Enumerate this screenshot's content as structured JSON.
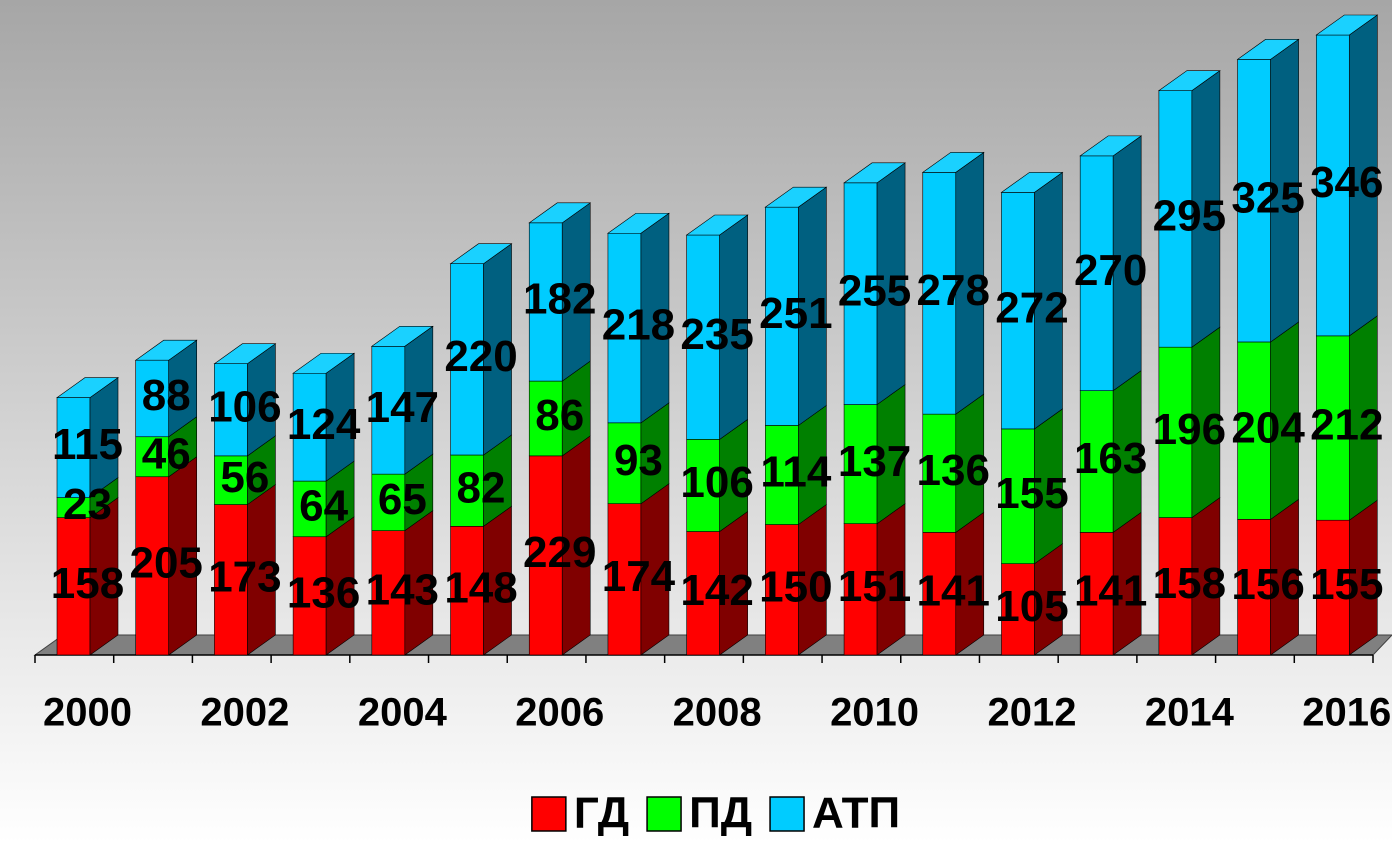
{
  "chart_data": {
    "type": "bar3d_stacked",
    "categories": [
      "2000",
      null,
      "2002",
      null,
      "2004",
      null,
      "2006",
      null,
      "2008",
      null,
      "2010",
      null,
      "2012",
      null,
      "2014",
      null,
      "2016"
    ],
    "series": [
      {
        "name": "ГД",
        "color": "#ff0000",
        "side": "#800000",
        "values": [
          158,
          205,
          173,
          136,
          143,
          148,
          229,
          174,
          142,
          150,
          151,
          141,
          105,
          141,
          158,
          156,
          155
        ]
      },
      {
        "name": "ПД",
        "color": "#00ff00",
        "side": "#008000",
        "values": [
          23,
          46,
          56,
          64,
          65,
          82,
          86,
          93,
          106,
          114,
          137,
          136,
          155,
          163,
          196,
          204,
          212
        ]
      },
      {
        "name": "АТП",
        "color": "#00ccff",
        "side": "#006080",
        "values": [
          115,
          88,
          106,
          124,
          147,
          220,
          182,
          218,
          235,
          251,
          255,
          278,
          272,
          270,
          295,
          325,
          346
        ]
      }
    ],
    "legend": "bottom"
  }
}
